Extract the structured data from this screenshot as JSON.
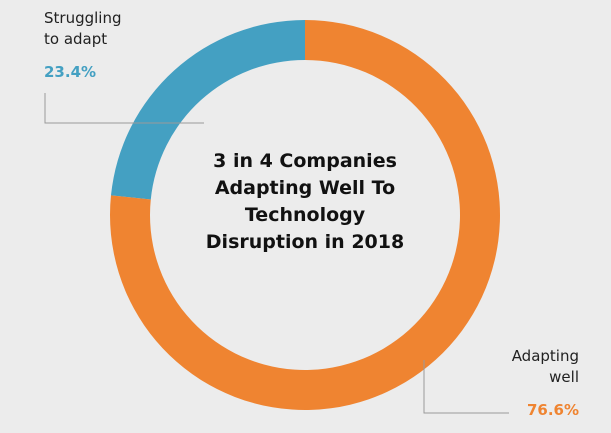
{
  "chart_data": {
    "type": "pie",
    "title": "3 in 4 Companies Adapting Well To Technology Disruption in 2018",
    "slices": [
      {
        "label": "Struggling to adapt",
        "label_lines": [
          "Struggling",
          "to adapt"
        ],
        "value": 23.4,
        "display": "23.4%",
        "color": "#44a0c2"
      },
      {
        "label": "Adapting well",
        "label_lines": [
          "Adapting",
          "well"
        ],
        "value": 76.6,
        "display": "76.6%",
        "color": "#ef8431"
      }
    ],
    "center_title_lines": [
      "3 in 4 Companies",
      "Adapting Well To",
      "Technology",
      "Disruption in 2018"
    ]
  }
}
